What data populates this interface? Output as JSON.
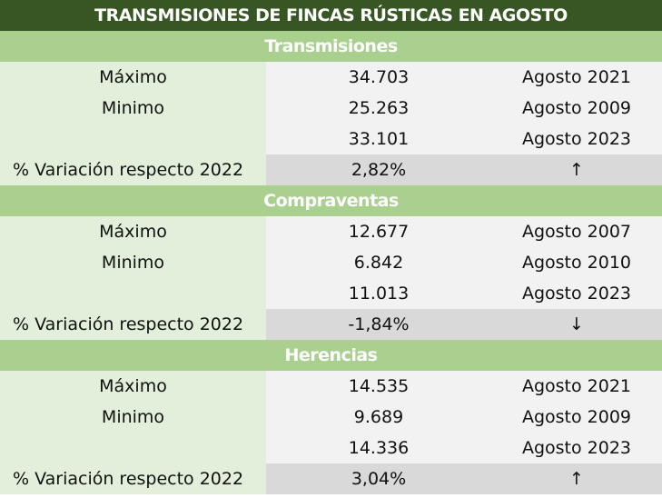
{
  "title": "TRANSMISIONES DE FINCAS RÚSTICAS EN AGOSTO",
  "sections": [
    {
      "name": "Transmisiones",
      "rows": [
        {
          "label": "Máximo",
          "value": "34.703",
          "period": "Agosto 2021"
        },
        {
          "label": "Minimo",
          "value": "25.263",
          "period": "Agosto 2009"
        },
        {
          "label": "",
          "value": "33.101",
          "period": "Agosto 2023"
        },
        {
          "label": "% Variación respecto 2022",
          "value": "2,82%",
          "period": "↑"
        }
      ]
    },
    {
      "name": "Compraventas",
      "rows": [
        {
          "label": "Máximo",
          "value": "12.677",
          "period": "Agosto 2007"
        },
        {
          "label": "Minimo",
          "value": "6.842",
          "period": "Agosto 2010"
        },
        {
          "label": "",
          "value": "11.013",
          "period": "Agosto 2023"
        },
        {
          "label": "% Variación respecto 2022",
          "value": "-1,84%",
          "period": "↓"
        }
      ]
    },
    {
      "name": "Herencias",
      "rows": [
        {
          "label": "Máximo",
          "value": "14.535",
          "period": "Agosto 2021"
        },
        {
          "label": "Minimo",
          "value": "9.689",
          "period": "Agosto 2009"
        },
        {
          "label": "",
          "value": "14.336",
          "period": "Agosto 2023"
        },
        {
          "label": "% Variación respecto 2022",
          "value": "3,04%",
          "period": "↑"
        }
      ]
    }
  ]
}
